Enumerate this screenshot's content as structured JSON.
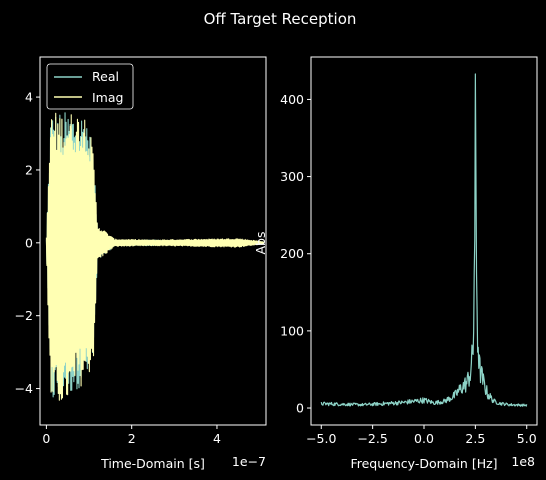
{
  "figure": {
    "title": "Off Target Reception",
    "background": "#000000",
    "axis_color": "#ffffff"
  },
  "chart_data": [
    {
      "type": "line",
      "xlabel": "Time-Domain [s]",
      "ylabel": "",
      "x_offset_label": "1e−7",
      "xlim": [
        -0.15,
        5.15
      ],
      "ylim": [
        -5.0,
        5.1
      ],
      "xticks": [
        0,
        2,
        4
      ],
      "xtick_labels": [
        "0",
        "2",
        "4"
      ],
      "yticks": [
        -4,
        -2,
        0,
        2,
        4
      ],
      "ytick_labels": [
        "−4",
        "−2",
        "0",
        "2",
        "4"
      ],
      "legend": {
        "placement": "top-left",
        "entries": [
          "Real",
          "Imag"
        ]
      },
      "series": [
        {
          "name": "Real",
          "color": "#8dd3c7",
          "envelope": {
            "t": [
              0,
              0.1,
              0.25,
              0.55,
              0.75,
              0.95,
              1.1,
              1.2,
              1.6,
              2.5,
              3.5,
              4.5,
              5.1
            ],
            "upper": [
              0.1,
              3.6,
              3.6,
              3.6,
              3.6,
              3.5,
              2.4,
              0.4,
              0.08,
              0.08,
              0.05,
              0.05,
              0.03
            ],
            "lower": [
              -0.1,
              -4.5,
              -4.4,
              -4.2,
              -4.0,
              -3.8,
              -3.3,
              -0.5,
              -0.08,
              -0.08,
              -0.05,
              -0.05,
              -0.03
            ]
          }
        },
        {
          "name": "Imag",
          "color": "#ffffb3",
          "envelope": {
            "t": [
              0,
              0.1,
              0.25,
              0.55,
              0.75,
              0.95,
              1.1,
              1.2,
              1.6,
              2.5,
              3.5,
              4.5,
              5.1
            ],
            "upper": [
              0.15,
              3.6,
              3.6,
              3.6,
              3.6,
              3.6,
              2.5,
              0.5,
              0.1,
              0.08,
              0.1,
              0.12,
              0.03
            ],
            "lower": [
              -0.15,
              -4.6,
              -4.5,
              -4.4,
              -4.0,
              -3.8,
              -3.3,
              -0.5,
              -0.1,
              -0.08,
              -0.1,
              -0.12,
              -0.03
            ]
          }
        }
      ]
    },
    {
      "type": "line",
      "xlabel": "Frequency-Domain [Hz]",
      "ylabel": "Abs",
      "x_offset_label": "1e8",
      "xlim": [
        -5.5,
        5.5
      ],
      "ylim": [
        -22,
        455
      ],
      "xticks": [
        -5.0,
        -2.5,
        0.0,
        2.5,
        5.0
      ],
      "xtick_labels": [
        "−5.0",
        "−2.5",
        "0.0",
        "2.5",
        "5.0"
      ],
      "yticks": [
        0,
        100,
        200,
        300,
        400
      ],
      "ytick_labels": [
        "0",
        "100",
        "200",
        "300",
        "400"
      ],
      "series": [
        {
          "name": "",
          "color": "#8dd3c7",
          "envelope": {
            "f": [
              -5.0,
              -4.0,
              -3.0,
              -2.0,
              -1.0,
              0.0,
              0.5,
              1.0,
              1.5,
              1.8,
              2.1,
              2.3,
              2.4,
              2.5,
              2.6,
              2.7,
              2.9,
              3.1,
              3.4,
              3.7,
              4.2,
              5.0
            ],
            "upper": [
              8,
              7,
              6,
              8,
              10,
              14,
              9,
              12,
              22,
              35,
              45,
              70,
              110,
              433,
              140,
              70,
              45,
              25,
              12,
              8,
              6,
              5
            ],
            "lower": [
              1,
              1,
              1,
              1,
              2,
              3,
              2,
              3,
              5,
              8,
              10,
              15,
              25,
              60,
              30,
              18,
              10,
              5,
              3,
              2,
              1,
              1
            ]
          }
        }
      ]
    }
  ]
}
